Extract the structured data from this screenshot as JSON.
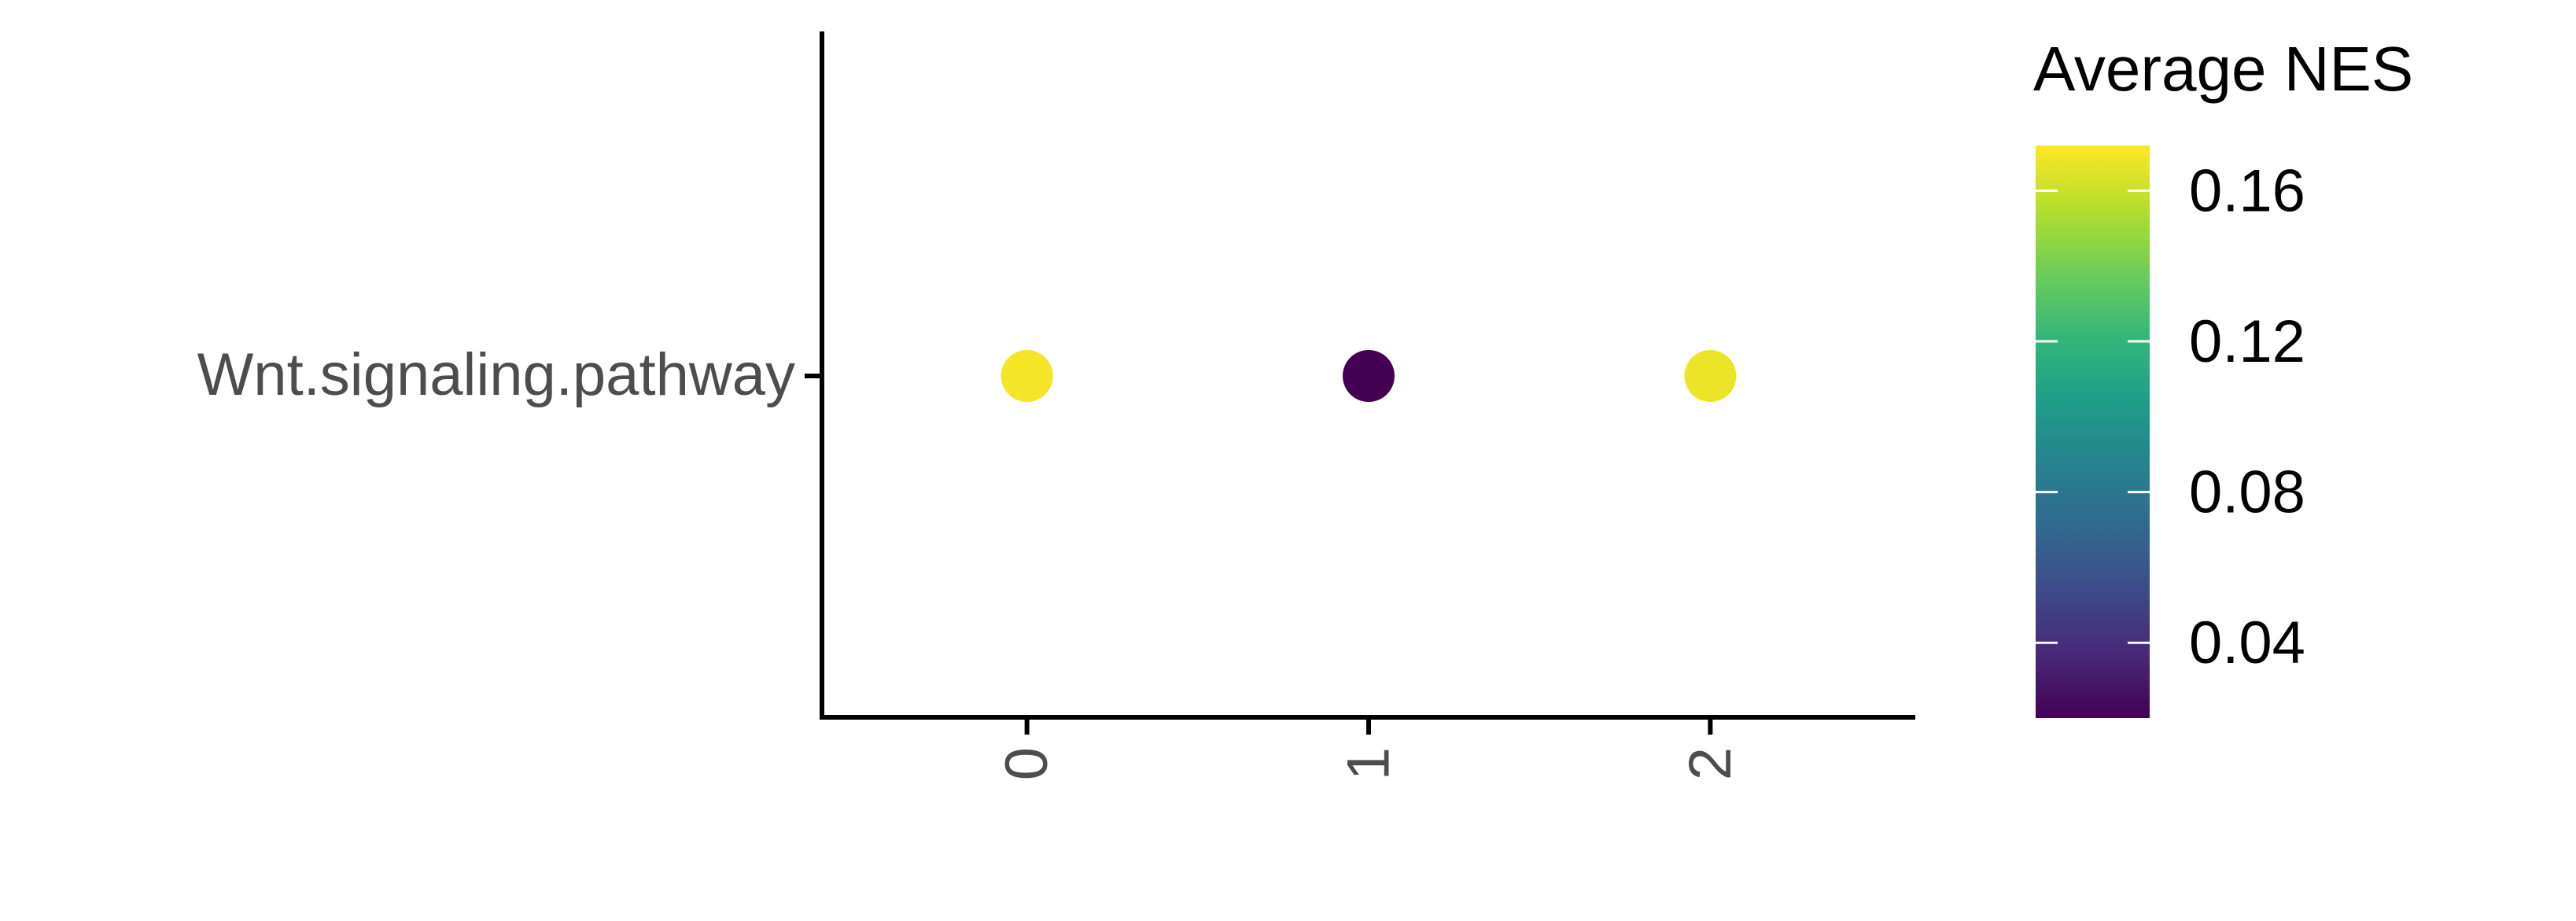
{
  "chart_data": {
    "type": "scatter",
    "title": "",
    "xlabel": "",
    "ylabel": "",
    "x_categories": [
      "0",
      "1",
      "2"
    ],
    "y_categories": [
      "Wnt.signaling.pathway"
    ],
    "points": [
      {
        "x": "0",
        "y": "Wnt.signaling.pathway",
        "value": 0.17
      },
      {
        "x": "1",
        "y": "Wnt.signaling.pathway",
        "value": 0.02
      },
      {
        "x": "2",
        "y": "Wnt.signaling.pathway",
        "value": 0.168
      }
    ],
    "grid": false,
    "legend": {
      "title": "Average NES",
      "placement": "right",
      "type": "colorbar",
      "range": [
        0.02,
        0.172
      ],
      "ticks": [
        0.04,
        0.08,
        0.12,
        0.16
      ],
      "tick_labels": [
        "0.04",
        "0.08",
        "0.12",
        "0.16"
      ],
      "colormap": "viridis",
      "colors": [
        "#440154",
        "#482878",
        "#3E4A89",
        "#31688E",
        "#26828E",
        "#1F9E89",
        "#35B779",
        "#6DCD59",
        "#B4DE2C",
        "#FDE725"
      ]
    }
  }
}
